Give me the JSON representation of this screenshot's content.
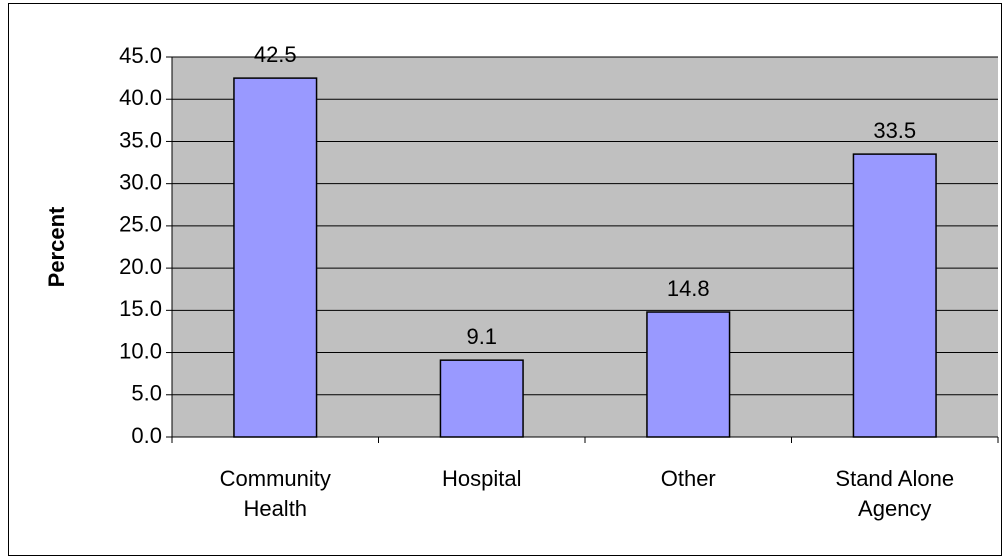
{
  "chart_data": {
    "type": "bar",
    "y_label": "Percent",
    "categories": [
      "Community Health",
      "Hospital",
      "Other",
      "Stand Alone Agency"
    ],
    "values": [
      42.5,
      9.1,
      14.8,
      33.5
    ],
    "color": "#9999ff",
    "ylim": [
      0,
      45
    ],
    "yticks": [
      {
        "value": 0,
        "label": "0.0"
      },
      {
        "value": 5,
        "label": "5.0"
      },
      {
        "value": 10,
        "label": "10.0"
      },
      {
        "value": 15,
        "label": "15.0"
      },
      {
        "value": 20,
        "label": "20.0"
      },
      {
        "value": 25,
        "label": "25.0"
      },
      {
        "value": 30,
        "label": "30.0"
      },
      {
        "value": 35,
        "label": "35.0"
      },
      {
        "value": 40,
        "label": "40.0"
      },
      {
        "value": 45,
        "label": "45.0"
      }
    ],
    "grid": true
  }
}
